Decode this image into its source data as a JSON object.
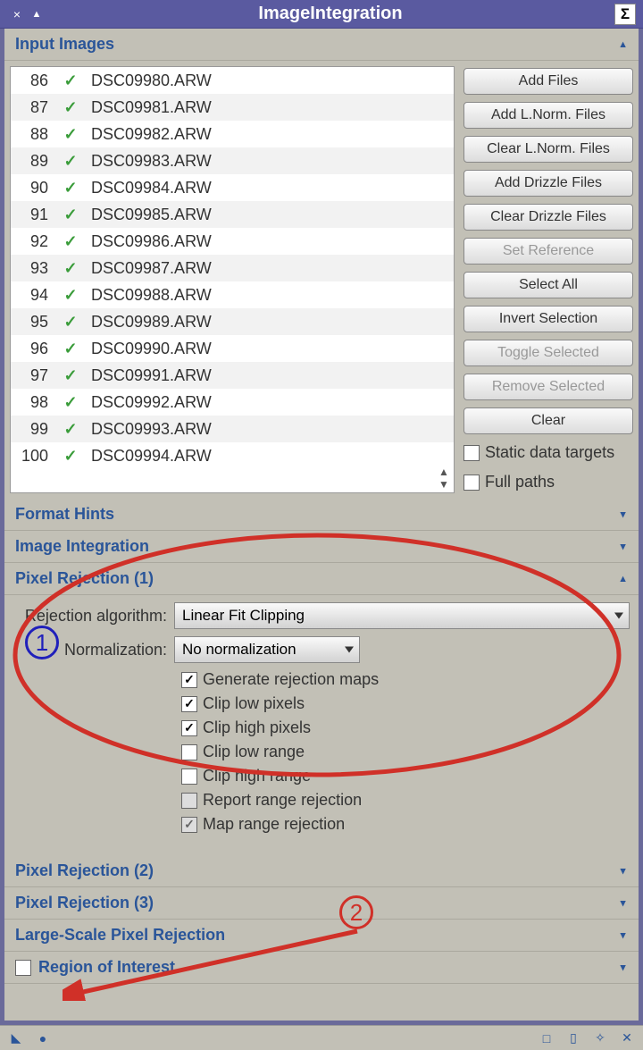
{
  "window": {
    "title": "ImageIntegration"
  },
  "colors": {
    "titlebar_bg": "#5a5aa0",
    "body_bg": "#c2c0b6",
    "header_text": "#2a5599",
    "check_green": "#3a9c3a",
    "annotation_red": "#d03028",
    "annotation_blue": "#2020bb"
  },
  "sections": {
    "input_images": {
      "title": "Input Images"
    },
    "format_hints": {
      "title": "Format Hints"
    },
    "image_integration": {
      "title": "Image Integration"
    },
    "pixel_rejection_1": {
      "title": "Pixel Rejection (1)"
    },
    "pixel_rejection_2": {
      "title": "Pixel Rejection (2)"
    },
    "pixel_rejection_3": {
      "title": "Pixel Rejection (3)"
    },
    "large_scale": {
      "title": "Large-Scale Pixel Rejection"
    },
    "roi": {
      "title": "Region of Interest"
    }
  },
  "files": [
    {
      "n": "86",
      "name": "DSC09980.ARW"
    },
    {
      "n": "87",
      "name": "DSC09981.ARW"
    },
    {
      "n": "88",
      "name": "DSC09982.ARW"
    },
    {
      "n": "89",
      "name": "DSC09983.ARW"
    },
    {
      "n": "90",
      "name": "DSC09984.ARW"
    },
    {
      "n": "91",
      "name": "DSC09985.ARW"
    },
    {
      "n": "92",
      "name": "DSC09986.ARW"
    },
    {
      "n": "93",
      "name": "DSC09987.ARW"
    },
    {
      "n": "94",
      "name": "DSC09988.ARW"
    },
    {
      "n": "95",
      "name": "DSC09989.ARW"
    },
    {
      "n": "96",
      "name": "DSC09990.ARW"
    },
    {
      "n": "97",
      "name": "DSC09991.ARW"
    },
    {
      "n": "98",
      "name": "DSC09992.ARW"
    },
    {
      "n": "99",
      "name": "DSC09993.ARW"
    },
    {
      "n": "100",
      "name": "DSC09994.ARW"
    }
  ],
  "buttons": {
    "add_files": "Add Files",
    "add_lnorm": "Add L.Norm. Files",
    "clear_lnorm": "Clear L.Norm. Files",
    "add_drizzle": "Add Drizzle Files",
    "clear_drizzle": "Clear Drizzle Files",
    "set_reference": "Set Reference",
    "select_all": "Select All",
    "invert_selection": "Invert Selection",
    "toggle_selected": "Toggle Selected",
    "remove_selected": "Remove Selected",
    "clear": "Clear"
  },
  "file_opts": {
    "static_targets": "Static data targets",
    "full_paths": "Full paths"
  },
  "pr1": {
    "labels": {
      "rejection_algo": "Rejection algorithm:",
      "normalization": "Normalization:"
    },
    "rejection_algo_value": "Linear Fit Clipping",
    "normalization_value": "No normalization",
    "checks": {
      "gen_rej_maps": "Generate rejection maps",
      "clip_low_px": "Clip low pixels",
      "clip_high_px": "Clip high pixels",
      "clip_low_range": "Clip low range",
      "clip_high_range": "Clip high range",
      "report_range_rej": "Report range rejection",
      "map_range_rej": "Map range rejection"
    }
  },
  "annotations": {
    "marker1": "1",
    "marker2": "2"
  }
}
